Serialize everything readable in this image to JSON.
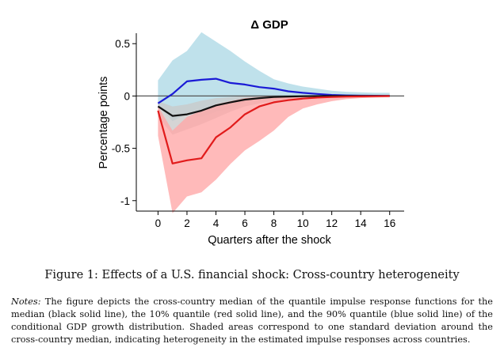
{
  "chart_data": {
    "type": "line",
    "title": "Δ GDP",
    "xlabel": "Quarters after the shock",
    "ylabel": "Percentage points",
    "xlim": [
      -1.5,
      17
    ],
    "ylim": [
      -1.1,
      0.6
    ],
    "xticks": [
      0,
      2,
      4,
      6,
      8,
      10,
      12,
      14,
      16
    ],
    "yticks": [
      {
        "value": 0.5,
        "label": "0.5"
      },
      {
        "value": 0,
        "label": "0"
      },
      {
        "value": -0.5,
        "label": "-0.5"
      },
      {
        "value": -1,
        "label": "-1"
      }
    ],
    "grid": false,
    "legend": "none",
    "zero_line": true,
    "x": [
      0,
      1,
      2,
      3,
      4,
      5,
      6,
      7,
      8,
      9,
      10,
      11,
      12,
      13,
      14,
      15,
      16
    ],
    "series": [
      {
        "id": "q90",
        "color": "#1a1ad6",
        "values": [
          -0.07,
          0.02,
          0.14,
          0.155,
          0.165,
          0.125,
          0.11,
          0.085,
          0.07,
          0.045,
          0.03,
          0.02,
          0.01,
          0.005,
          0.003,
          0.002,
          0.001
        ],
        "band_upper": [
          0.15,
          0.34,
          0.43,
          0.61,
          0.52,
          0.43,
          0.33,
          0.24,
          0.16,
          0.12,
          0.09,
          0.07,
          0.05,
          0.04,
          0.035,
          0.03,
          0.03
        ],
        "band_lower": [
          -0.09,
          -0.24,
          -0.17,
          -0.2,
          -0.15,
          -0.12,
          -0.06,
          -0.02,
          0.0,
          0.0,
          0.0,
          0.0,
          0.0,
          0.0,
          0.0,
          0.0,
          -0.005
        ],
        "band_color": "#add8e6"
      },
      {
        "id": "median",
        "color": "#111111",
        "values": [
          -0.1,
          -0.19,
          -0.175,
          -0.14,
          -0.09,
          -0.06,
          -0.035,
          -0.02,
          -0.01,
          -0.005,
          -0.002,
          -0.001,
          0.0,
          0.0,
          0.0,
          0.0,
          0.0
        ],
        "band_upper": [
          -0.05,
          -0.1,
          -0.08,
          -0.045,
          -0.02,
          -0.01,
          0.0,
          0.0,
          0.0,
          0.0,
          0.0,
          0.0,
          0.0,
          0.0,
          0.0,
          0.0,
          0.0
        ],
        "band_lower": [
          -0.2,
          -0.37,
          -0.32,
          -0.27,
          -0.21,
          -0.15,
          -0.1,
          -0.07,
          -0.05,
          -0.03,
          -0.02,
          -0.01,
          -0.005,
          0.0,
          0.0,
          0.0,
          0.0
        ],
        "band_color": "#c9c9c9"
      },
      {
        "id": "q10",
        "color": "#e11b1b",
        "values": [
          -0.14,
          -0.645,
          -0.615,
          -0.595,
          -0.395,
          -0.3,
          -0.175,
          -0.1,
          -0.06,
          -0.04,
          -0.025,
          -0.015,
          -0.01,
          -0.006,
          -0.004,
          -0.002,
          -0.001
        ],
        "band_upper": [
          -0.1,
          -0.33,
          -0.2,
          -0.14,
          -0.08,
          -0.05,
          -0.02,
          -0.01,
          0.0,
          0.0,
          0.0,
          0.0,
          0.0,
          0.0,
          0.0,
          0.0,
          0.0
        ],
        "band_lower": [
          -0.38,
          -1.12,
          -0.96,
          -0.92,
          -0.8,
          -0.65,
          -0.52,
          -0.43,
          -0.33,
          -0.2,
          -0.12,
          -0.08,
          -0.05,
          -0.03,
          -0.02,
          -0.015,
          -0.01
        ],
        "band_color": "#ffa6a6"
      }
    ]
  },
  "caption": "Figure 1: Effects of a U.S. financial shock: Cross-country heterogeneity",
  "notes_label": "Notes:",
  "notes_text": "The figure depicts the cross-country median of the quantile impulse response functions for the median (black solid line), the 10% quantile (red solid line), and the 90% quantile (blue solid line) of the conditional GDP growth distribution. Shaded areas correspond to one standard deviation around the cross-country median, indicating heterogeneity in the estimated impulse responses across countries."
}
